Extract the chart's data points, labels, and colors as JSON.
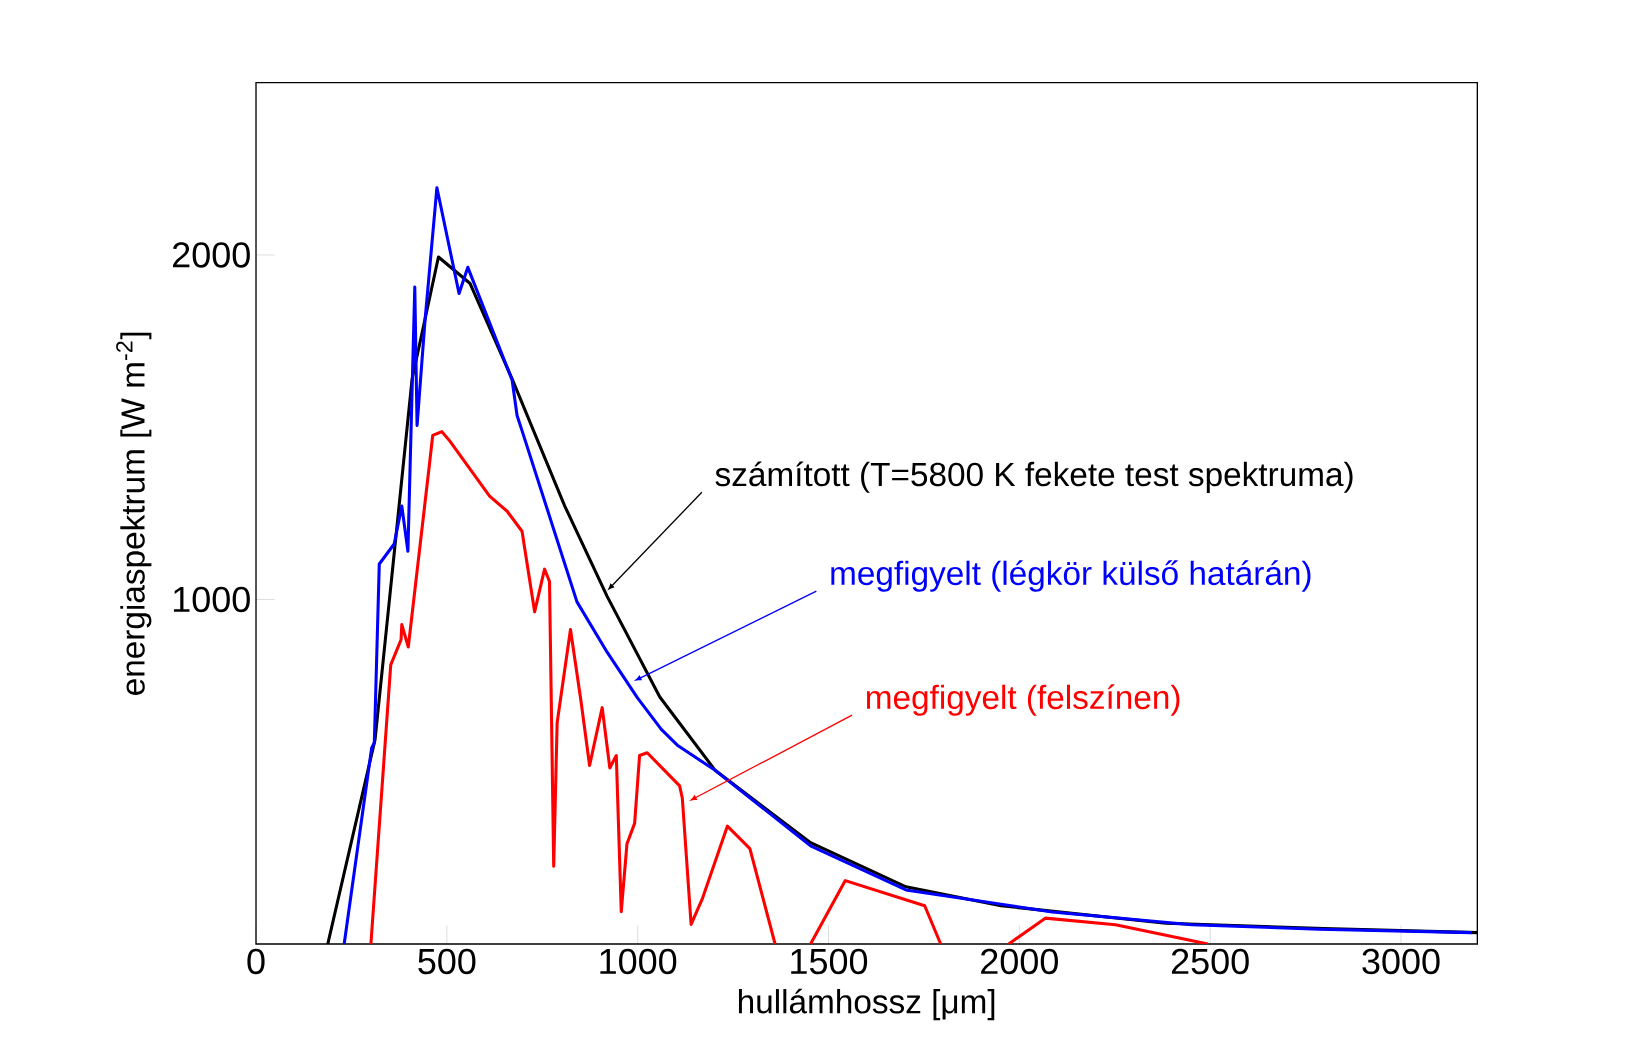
{
  "chart_data": {
    "type": "line",
    "xlabel": "hullámhossz [μm]",
    "ylabel": "energiaspektrum [W m$^{-2}$]",
    "xlim": [
      0,
      3200
    ],
    "ylim": [
      0,
      2500
    ],
    "xticks": [
      0,
      500,
      1000,
      1500,
      2000,
      2500,
      3000
    ],
    "yticks": [
      1000,
      2000
    ],
    "grid": false,
    "legend": false,
    "series": [
      {
        "name": "számított (T=5800 K fekete test spektruma)",
        "color": "#000000",
        "x": [
          188,
          312,
          409,
          478,
          561,
          671,
          809,
          920,
          1058,
          1203,
          1453,
          1703,
          1952,
          2384,
          2798,
          3200
        ],
        "values": [
          0,
          594,
          1640,
          1994,
          1917,
          1640,
          1271,
          1009,
          717,
          504,
          294,
          166,
          111,
          60,
          45,
          33
        ]
      },
      {
        "name": "megfigyelt (légkör külső határán)",
        "color": "#0000ff",
        "x": [
          231,
          303,
          310,
          323,
          362,
          382,
          398,
          416,
          422,
          443,
          474,
          532,
          555,
          671,
          684,
          697,
          841,
          920,
          999,
          1062,
          1104,
          1203,
          1453,
          1703,
          2086,
          2452,
          2785,
          3185
        ],
        "values": [
          0,
          569,
          584,
          1103,
          1161,
          1271,
          1140,
          1907,
          1505,
          1812,
          2195,
          1888,
          1964,
          1637,
          1534,
          1490,
          993,
          847,
          715,
          623,
          577,
          504,
          285,
          157,
          93,
          56,
          43,
          33
        ]
      },
      {
        "name": "megfigyelt (felszínen)",
        "color": "#ff0000",
        "x": [
          301,
          353,
          380,
          382,
          399,
          454,
          463,
          487,
          507,
          612,
          658,
          697,
          730,
          756,
          769,
          780,
          789,
          824,
          852,
          874,
          907,
          927,
          944,
          957,
          972,
          992,
          1005,
          1025,
          1110,
          1117,
          1140,
          1169,
          1235,
          1294,
          1360,
          1400,
          1453,
          1544,
          1752,
          1794,
          1880,
          1972,
          2068,
          2252,
          2494
        ],
        "values": [
          0,
          810,
          883,
          927,
          862,
          1388,
          1476,
          1487,
          1461,
          1300,
          1256,
          1198,
          964,
          1088,
          1052,
          226,
          642,
          913,
          701,
          518,
          686,
          511,
          547,
          94,
          291,
          350,
          547,
          555,
          459,
          423,
          57,
          130,
          342,
          277,
          0,
          null,
          0,
          184,
          111,
          0,
          null,
          0,
          75,
          56,
          0
        ]
      }
    ]
  }
}
